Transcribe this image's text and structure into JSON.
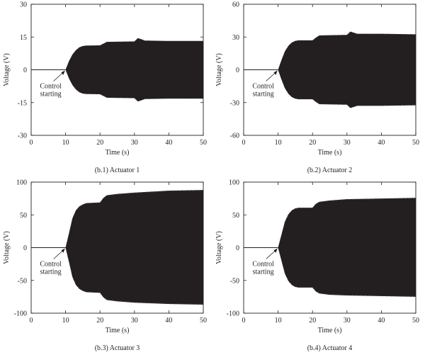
{
  "figure": {
    "colors": {
      "signal": "#231f20",
      "axis": "#231f20",
      "background": "#ffffff"
    }
  },
  "chart_data": [
    {
      "type": "line",
      "caption": "(b.1) Actuator 1",
      "xlabel": "Time (s)",
      "ylabel": "Voltage (V)",
      "xlim": [
        0,
        50
      ],
      "ylim": [
        -30,
        30
      ],
      "xticks": [
        0,
        10,
        20,
        30,
        40,
        50
      ],
      "yticks": [
        -30,
        -15,
        0,
        15,
        30
      ],
      "annotation": {
        "lines": [
          "Control",
          "starting"
        ],
        "x": 10,
        "y": 0
      },
      "control_start": 10,
      "grid": false,
      "series": [
        {
          "kind": "oscillation-envelope",
          "upper": {
            "t": [
              0,
              10,
              11,
              12,
              13,
              14,
              15,
              16,
              20,
              21,
              22,
              30,
              31,
              32,
              33,
              40,
              50
            ],
            "v": [
              0,
              0,
              4,
              7,
              9,
              10.3,
              10.9,
              11.1,
              11.2,
              12,
              12.8,
              13,
              14.5,
              14,
              13.4,
              13.2,
              13.2
            ]
          },
          "lower": {
            "t": [
              0,
              10,
              11,
              12,
              13,
              14,
              15,
              16,
              20,
              21,
              22,
              30,
              31,
              32,
              33,
              40,
              50
            ],
            "v": [
              0,
              0,
              -4,
              -7,
              -9,
              -10.3,
              -10.9,
              -11.1,
              -11.2,
              -12,
              -12.8,
              -13,
              -14.5,
              -14,
              -13.4,
              -13.2,
              -13.2
            ]
          }
        }
      ]
    },
    {
      "type": "line",
      "caption": "(b.2) Actuator 2",
      "xlabel": "Time (s)",
      "ylabel": "Voltage (V)",
      "xlim": [
        0,
        50
      ],
      "ylim": [
        -60,
        60
      ],
      "xticks": [
        0,
        10,
        20,
        30,
        40,
        50
      ],
      "yticks": [
        -60,
        -30,
        0,
        30,
        60
      ],
      "annotation": {
        "lines": [
          "Control",
          "starting"
        ],
        "x": 10,
        "y": 0
      },
      "control_start": 10,
      "grid": false,
      "series": [
        {
          "kind": "oscillation-envelope",
          "upper": {
            "t": [
              0,
              10,
              11,
              12,
              13,
              14,
              15,
              16,
              20,
              21,
              22,
              30,
              31,
              32,
              33,
              40,
              50
            ],
            "v": [
              0,
              0,
              9,
              17,
              22,
              25,
              26.5,
              27,
              27,
              29.5,
              31.5,
              32,
              35,
              34,
              33,
              33,
              32.5
            ]
          },
          "lower": {
            "t": [
              0,
              10,
              11,
              12,
              13,
              14,
              15,
              16,
              20,
              21,
              22,
              30,
              31,
              32,
              33,
              40,
              50
            ],
            "v": [
              0,
              0,
              -9,
              -17,
              -22,
              -25,
              -26.5,
              -27,
              -27,
              -29.5,
              -31.5,
              -32,
              -35,
              -34,
              -33,
              -33,
              -32.5
            ]
          }
        }
      ]
    },
    {
      "type": "line",
      "caption": "(b.3) Actuator 3",
      "xlabel": "Time (s)",
      "ylabel": "Voltage (V)",
      "xlim": [
        0,
        50
      ],
      "ylim": [
        -100,
        100
      ],
      "xticks": [
        0,
        10,
        20,
        30,
        40,
        50
      ],
      "yticks": [
        -100,
        -50,
        0,
        50,
        100
      ],
      "annotation": {
        "lines": [
          "Control",
          "starting"
        ],
        "x": 10,
        "y": 0
      },
      "control_start": 10,
      "grid": false,
      "series": [
        {
          "kind": "oscillation-envelope",
          "upper": {
            "t": [
              0,
              10,
              11,
              12,
              13,
              14,
              15,
              16,
              20,
              21,
              22,
              25,
              30,
              40,
              50
            ],
            "v": [
              0,
              0,
              22,
              45,
              57,
              63,
              66,
              68,
              69,
              76,
              80,
              82,
              84,
              87,
              88
            ]
          },
          "lower": {
            "t": [
              0,
              10,
              11,
              12,
              13,
              14,
              15,
              16,
              20,
              21,
              22,
              25,
              30,
              40,
              50
            ],
            "v": [
              0,
              0,
              -22,
              -45,
              -57,
              -63,
              -66,
              -68,
              -69,
              -76,
              -80,
              -82,
              -84,
              -86,
              -87
            ]
          }
        }
      ]
    },
    {
      "type": "line",
      "caption": "(b.4) Actuator 4",
      "xlabel": "Time (s)",
      "ylabel": "Voltage (V)",
      "xlim": [
        0,
        50
      ],
      "ylim": [
        -100,
        100
      ],
      "xticks": [
        0,
        10,
        20,
        30,
        40,
        50
      ],
      "yticks": [
        -100,
        -50,
        0,
        50,
        100
      ],
      "annotation": {
        "lines": [
          "Control",
          "starting"
        ],
        "x": 10,
        "y": 0
      },
      "control_start": 10,
      "grid": false,
      "series": [
        {
          "kind": "oscillation-envelope",
          "upper": {
            "t": [
              0,
              10,
              11,
              12,
              13,
              14,
              15,
              16,
              20,
              21,
              22,
              25,
              30,
              40,
              50
            ],
            "v": [
              0,
              0,
              20,
              40,
              51,
              57,
              60,
              61,
              61,
              67,
              70,
              72,
              74,
              75,
              76
            ]
          },
          "lower": {
            "t": [
              0,
              10,
              11,
              12,
              13,
              14,
              15,
              16,
              20,
              21,
              22,
              25,
              30,
              40,
              50
            ],
            "v": [
              0,
              0,
              -20,
              -40,
              -51,
              -57,
              -60,
              -61,
              -61,
              -67,
              -70,
              -72,
              -73,
              -74,
              -75
            ]
          }
        }
      ]
    }
  ]
}
